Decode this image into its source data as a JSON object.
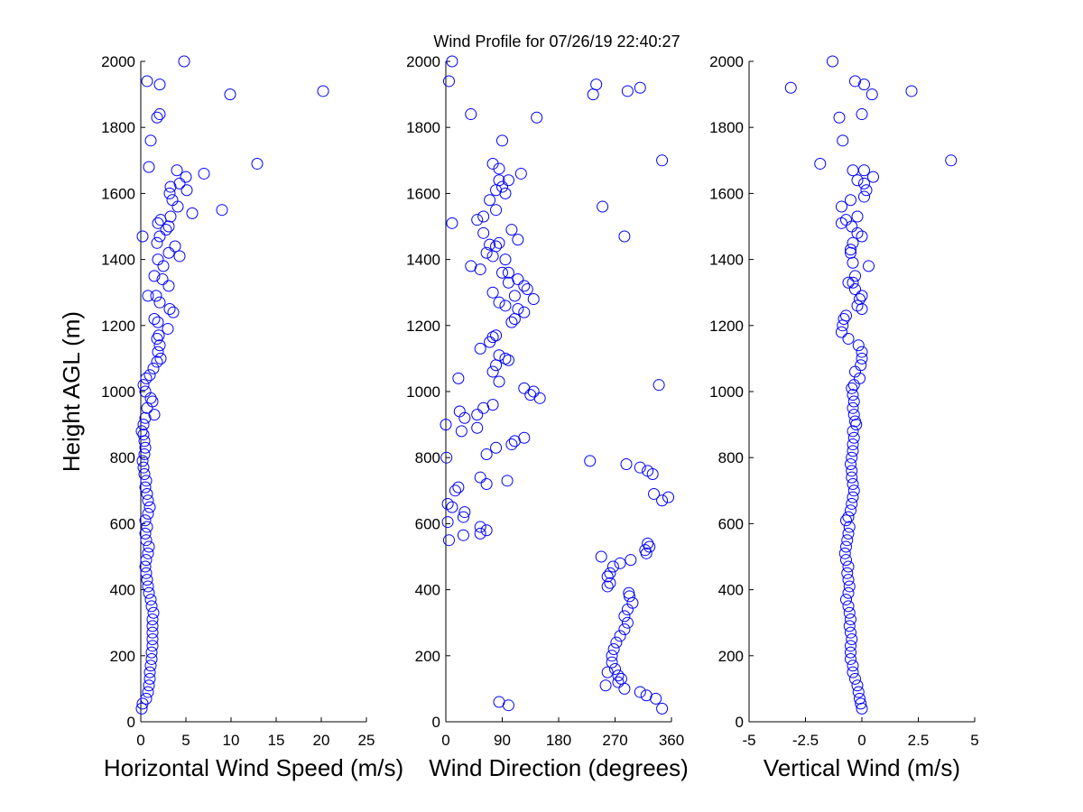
{
  "title": "Wind Profile for  07/26/19 22:40:27",
  "colors": {
    "marker": "#0000ff",
    "axis": "#000000",
    "background": "#ffffff"
  },
  "chart_data": [
    {
      "type": "scatter",
      "xlabel": "Horizontal Wind Speed (m/s)",
      "ylabel": "Height AGL (m)",
      "xlim": [
        0,
        25
      ],
      "ylim": [
        0,
        2000
      ],
      "xticks": [
        "0",
        "5",
        "10",
        "15",
        "20",
        "25"
      ],
      "yticks": [
        "0",
        "200",
        "400",
        "600",
        "800",
        "1000",
        "1200",
        "1400",
        "1600",
        "1800",
        "2000"
      ],
      "points": [
        [
          0.1,
          40
        ],
        [
          0.2,
          55
        ],
        [
          0.6,
          70
        ],
        [
          0.8,
          90
        ],
        [
          0.9,
          110
        ],
        [
          1.0,
          130
        ],
        [
          1.0,
          150
        ],
        [
          1.1,
          170
        ],
        [
          1.2,
          190
        ],
        [
          1.2,
          210
        ],
        [
          1.3,
          230
        ],
        [
          1.3,
          250
        ],
        [
          1.3,
          270
        ],
        [
          1.3,
          290
        ],
        [
          1.3,
          310
        ],
        [
          1.4,
          330
        ],
        [
          1.2,
          350
        ],
        [
          1.1,
          370
        ],
        [
          0.9,
          390
        ],
        [
          0.8,
          410
        ],
        [
          0.7,
          430
        ],
        [
          0.6,
          450
        ],
        [
          0.5,
          470
        ],
        [
          0.6,
          490
        ],
        [
          0.8,
          510
        ],
        [
          0.9,
          530
        ],
        [
          0.6,
          550
        ],
        [
          0.5,
          570
        ],
        [
          0.7,
          590
        ],
        [
          0.5,
          610
        ],
        [
          0.8,
          630
        ],
        [
          1.0,
          650
        ],
        [
          0.8,
          670
        ],
        [
          0.7,
          690
        ],
        [
          0.5,
          710
        ],
        [
          0.6,
          730
        ],
        [
          0.4,
          750
        ],
        [
          0.3,
          770
        ],
        [
          0.2,
          790
        ],
        [
          0.4,
          810
        ],
        [
          0.5,
          830
        ],
        [
          0.4,
          850
        ],
        [
          0.3,
          870
        ],
        [
          0.1,
          880
        ],
        [
          0.3,
          900
        ],
        [
          0.5,
          920
        ],
        [
          1.5,
          930
        ],
        [
          0.7,
          950
        ],
        [
          1.3,
          970
        ],
        [
          1.1,
          980
        ],
        [
          0.5,
          1000
        ],
        [
          0.3,
          1020
        ],
        [
          0.6,
          1040
        ],
        [
          1.0,
          1050
        ],
        [
          1.4,
          1070
        ],
        [
          1.8,
          1090
        ],
        [
          2.2,
          1100
        ],
        [
          1.9,
          1120
        ],
        [
          2.1,
          1140
        ],
        [
          1.8,
          1160
        ],
        [
          2.0,
          1170
        ],
        [
          3.0,
          1190
        ],
        [
          1.9,
          1210
        ],
        [
          1.5,
          1220
        ],
        [
          3.6,
          1240
        ],
        [
          3.2,
          1250
        ],
        [
          2.1,
          1270
        ],
        [
          1.7,
          1290
        ],
        [
          0.8,
          1290
        ],
        [
          3.1,
          1320
        ],
        [
          2.4,
          1340
        ],
        [
          1.5,
          1350
        ],
        [
          2.5,
          1380
        ],
        [
          1.9,
          1400
        ],
        [
          4.3,
          1410
        ],
        [
          3.1,
          1420
        ],
        [
          3.8,
          1440
        ],
        [
          1.8,
          1450
        ],
        [
          2.1,
          1470
        ],
        [
          0.2,
          1470
        ],
        [
          2.8,
          1490
        ],
        [
          3.1,
          1500
        ],
        [
          1.9,
          1510
        ],
        [
          2.2,
          1520
        ],
        [
          3.3,
          1530
        ],
        [
          5.7,
          1540
        ],
        [
          4.1,
          1560
        ],
        [
          9.0,
          1550
        ],
        [
          3.5,
          1580
        ],
        [
          3.2,
          1600
        ],
        [
          5.1,
          1610
        ],
        [
          3.3,
          1620
        ],
        [
          4.3,
          1630
        ],
        [
          5.0,
          1650
        ],
        [
          4.0,
          1670
        ],
        [
          7.0,
          1660
        ],
        [
          12.9,
          1690
        ],
        [
          0.9,
          1680
        ],
        [
          1.1,
          1760
        ],
        [
          1.8,
          1830
        ],
        [
          2.1,
          1840
        ],
        [
          9.9,
          1900
        ],
        [
          20.2,
          1910
        ],
        [
          2.1,
          1930
        ],
        [
          0.7,
          1940
        ],
        [
          4.8,
          2000
        ]
      ]
    },
    {
      "type": "scatter",
      "xlabel": "Wind Direction (degrees)",
      "ylabel": "",
      "xlim": [
        0,
        360
      ],
      "ylim": [
        0,
        2000
      ],
      "xticks": [
        "0",
        "90",
        "180",
        "270",
        "360"
      ],
      "yticks": [
        "0",
        "200",
        "400",
        "600",
        "800",
        "1000",
        "1200",
        "1400",
        "1600",
        "1800",
        "2000"
      ],
      "points": [
        [
          100,
          50
        ],
        [
          85,
          60
        ],
        [
          345,
          40
        ],
        [
          320,
          80
        ],
        [
          335,
          70
        ],
        [
          310,
          90
        ],
        [
          285,
          100
        ],
        [
          255,
          110
        ],
        [
          275,
          120
        ],
        [
          280,
          130
        ],
        [
          275,
          140
        ],
        [
          258,
          150
        ],
        [
          270,
          160
        ],
        [
          265,
          180
        ],
        [
          265,
          200
        ],
        [
          268,
          220
        ],
        [
          272,
          240
        ],
        [
          278,
          260
        ],
        [
          285,
          280
        ],
        [
          290,
          300
        ],
        [
          285,
          320
        ],
        [
          290,
          340
        ],
        [
          298,
          360
        ],
        [
          293,
          380
        ],
        [
          292,
          390
        ],
        [
          258,
          410
        ],
        [
          262,
          420
        ],
        [
          258,
          440
        ],
        [
          262,
          450
        ],
        [
          267,
          470
        ],
        [
          278,
          480
        ],
        [
          248,
          500
        ],
        [
          295,
          490
        ],
        [
          320,
          510
        ],
        [
          318,
          520
        ],
        [
          325,
          530
        ],
        [
          322,
          540
        ],
        [
          5,
          550
        ],
        [
          28,
          565
        ],
        [
          55,
          570
        ],
        [
          65,
          580
        ],
        [
          55,
          590
        ],
        [
          3,
          605
        ],
        [
          28,
          620
        ],
        [
          30,
          635
        ],
        [
          10,
          650
        ],
        [
          3,
          660
        ],
        [
          15,
          700
        ],
        [
          20,
          710
        ],
        [
          98,
          730
        ],
        [
          65,
          720
        ],
        [
          55,
          740
        ],
        [
          345,
          670
        ],
        [
          355,
          680
        ],
        [
          332,
          690
        ],
        [
          288,
          780
        ],
        [
          310,
          770
        ],
        [
          322,
          760
        ],
        [
          330,
          750
        ],
        [
          230,
          790
        ],
        [
          1,
          800
        ],
        [
          65,
          810
        ],
        [
          80,
          830
        ],
        [
          105,
          840
        ],
        [
          110,
          850
        ],
        [
          125,
          860
        ],
        [
          25,
          880
        ],
        [
          50,
          890
        ],
        [
          0,
          900
        ],
        [
          30,
          920
        ],
        [
          22,
          940
        ],
        [
          50,
          930
        ],
        [
          75,
          960
        ],
        [
          60,
          950
        ],
        [
          150,
          980
        ],
        [
          135,
          990
        ],
        [
          140,
          1000
        ],
        [
          125,
          1010
        ],
        [
          340,
          1020
        ],
        [
          20,
          1040
        ],
        [
          85,
          1030
        ],
        [
          75,
          1060
        ],
        [
          80,
          1080
        ],
        [
          100,
          1095
        ],
        [
          95,
          1100
        ],
        [
          85,
          1110
        ],
        [
          70,
          1150
        ],
        [
          75,
          1165
        ],
        [
          80,
          1170
        ],
        [
          55,
          1130
        ],
        [
          105,
          1210
        ],
        [
          110,
          1220
        ],
        [
          95,
          1260
        ],
        [
          115,
          1250
        ],
        [
          125,
          1240
        ],
        [
          140,
          1280
        ],
        [
          110,
          1290
        ],
        [
          85,
          1270
        ],
        [
          75,
          1300
        ],
        [
          130,
          1310
        ],
        [
          125,
          1320
        ],
        [
          100,
          1330
        ],
        [
          115,
          1340
        ],
        [
          100,
          1360
        ],
        [
          90,
          1360
        ],
        [
          55,
          1370
        ],
        [
          40,
          1380
        ],
        [
          95,
          1400
        ],
        [
          75,
          1410
        ],
        [
          65,
          1420
        ],
        [
          80,
          1440
        ],
        [
          70,
          1445
        ],
        [
          85,
          1450
        ],
        [
          115,
          1460
        ],
        [
          345,
          1700
        ],
        [
          285,
          1470
        ],
        [
          60,
          1480
        ],
        [
          105,
          1490
        ],
        [
          10,
          1510
        ],
        [
          50,
          1520
        ],
        [
          60,
          1530
        ],
        [
          80,
          1550
        ],
        [
          250,
          1560
        ],
        [
          70,
          1580
        ],
        [
          95,
          1600
        ],
        [
          80,
          1610
        ],
        [
          90,
          1620
        ],
        [
          85,
          1640
        ],
        [
          100,
          1640
        ],
        [
          120,
          1660
        ],
        [
          85,
          1675
        ],
        [
          75,
          1690
        ],
        [
          90,
          1760
        ],
        [
          40,
          1840
        ],
        [
          145,
          1830
        ],
        [
          235,
          1900
        ],
        [
          290,
          1910
        ],
        [
          310,
          1920
        ],
        [
          240,
          1930
        ],
        [
          5,
          1940
        ],
        [
          10,
          2000
        ]
      ]
    },
    {
      "type": "scatter",
      "xlabel": "Vertical Wind (m/s)",
      "ylabel": "",
      "xlim": [
        -5,
        5
      ],
      "ylim": [
        0,
        2000
      ],
      "xticks": [
        "-5",
        "-2.5",
        "0",
        "2.5",
        "5"
      ],
      "yticks": [
        "0",
        "200",
        "400",
        "600",
        "800",
        "1000",
        "1200",
        "1400",
        "1600",
        "1800",
        "2000"
      ],
      "points": [
        [
          0,
          40
        ],
        [
          -0.05,
          55
        ],
        [
          -0.1,
          70
        ],
        [
          -0.15,
          90
        ],
        [
          -0.2,
          110
        ],
        [
          -0.3,
          130
        ],
        [
          -0.4,
          150
        ],
        [
          -0.4,
          170
        ],
        [
          -0.5,
          190
        ],
        [
          -0.5,
          210
        ],
        [
          -0.5,
          230
        ],
        [
          -0.45,
          250
        ],
        [
          -0.5,
          270
        ],
        [
          -0.55,
          290
        ],
        [
          -0.5,
          310
        ],
        [
          -0.55,
          330
        ],
        [
          -0.6,
          350
        ],
        [
          -0.7,
          370
        ],
        [
          -0.6,
          390
        ],
        [
          -0.55,
          410
        ],
        [
          -0.6,
          430
        ],
        [
          -0.65,
          450
        ],
        [
          -0.6,
          470
        ],
        [
          -0.7,
          490
        ],
        [
          -0.75,
          510
        ],
        [
          -0.7,
          530
        ],
        [
          -0.65,
          550
        ],
        [
          -0.6,
          570
        ],
        [
          -0.55,
          590
        ],
        [
          -0.7,
          610
        ],
        [
          -0.6,
          620
        ],
        [
          -0.5,
          640
        ],
        [
          -0.45,
          660
        ],
        [
          -0.4,
          680
        ],
        [
          -0.35,
          700
        ],
        [
          -0.4,
          720
        ],
        [
          -0.45,
          740
        ],
        [
          -0.45,
          760
        ],
        [
          -0.5,
          780
        ],
        [
          -0.45,
          800
        ],
        [
          -0.4,
          820
        ],
        [
          -0.4,
          840
        ],
        [
          -0.35,
          860
        ],
        [
          -0.4,
          880
        ],
        [
          -0.25,
          900
        ],
        [
          -0.3,
          910
        ],
        [
          -0.35,
          930
        ],
        [
          -0.4,
          950
        ],
        [
          -0.35,
          970
        ],
        [
          -0.4,
          990
        ],
        [
          -0.45,
          1010
        ],
        [
          -0.35,
          1020
        ],
        [
          -0.1,
          1040
        ],
        [
          -0.3,
          1060
        ],
        [
          -0.05,
          1080
        ],
        [
          0,
          1100
        ],
        [
          0,
          1120
        ],
        [
          -0.15,
          1140
        ],
        [
          -0.6,
          1160
        ],
        [
          -0.9,
          1180
        ],
        [
          -0.85,
          1200
        ],
        [
          -0.8,
          1220
        ],
        [
          -0.7,
          1230
        ],
        [
          0,
          1250
        ],
        [
          -0.2,
          1260
        ],
        [
          -0.1,
          1280
        ],
        [
          0,
          1290
        ],
        [
          -0.3,
          1310
        ],
        [
          -0.4,
          1330
        ],
        [
          -0.6,
          1330
        ],
        [
          -0.3,
          1350
        ],
        [
          0.3,
          1380
        ],
        [
          -0.4,
          1390
        ],
        [
          -0.5,
          1420
        ],
        [
          -0.5,
          1430
        ],
        [
          -0.4,
          1450
        ],
        [
          0,
          1470
        ],
        [
          -0.2,
          1480
        ],
        [
          -0.45,
          1500
        ],
        [
          -0.9,
          1510
        ],
        [
          -0.7,
          1520
        ],
        [
          -0.2,
          1530
        ],
        [
          -0.9,
          1560
        ],
        [
          -0.5,
          1580
        ],
        [
          0.1,
          1590
        ],
        [
          0.2,
          1610
        ],
        [
          0.1,
          1630
        ],
        [
          -0.2,
          1640
        ],
        [
          0.5,
          1650
        ],
        [
          0.1,
          1670
        ],
        [
          -0.4,
          1670
        ],
        [
          3.95,
          1700
        ],
        [
          -1.85,
          1690
        ],
        [
          -0.85,
          1760
        ],
        [
          -1.0,
          1830
        ],
        [
          0,
          1840
        ],
        [
          -3.15,
          1920
        ],
        [
          2.2,
          1910
        ],
        [
          0.45,
          1900
        ],
        [
          0.1,
          1930
        ],
        [
          -0.3,
          1940
        ],
        [
          -1.3,
          2000
        ]
      ]
    }
  ]
}
